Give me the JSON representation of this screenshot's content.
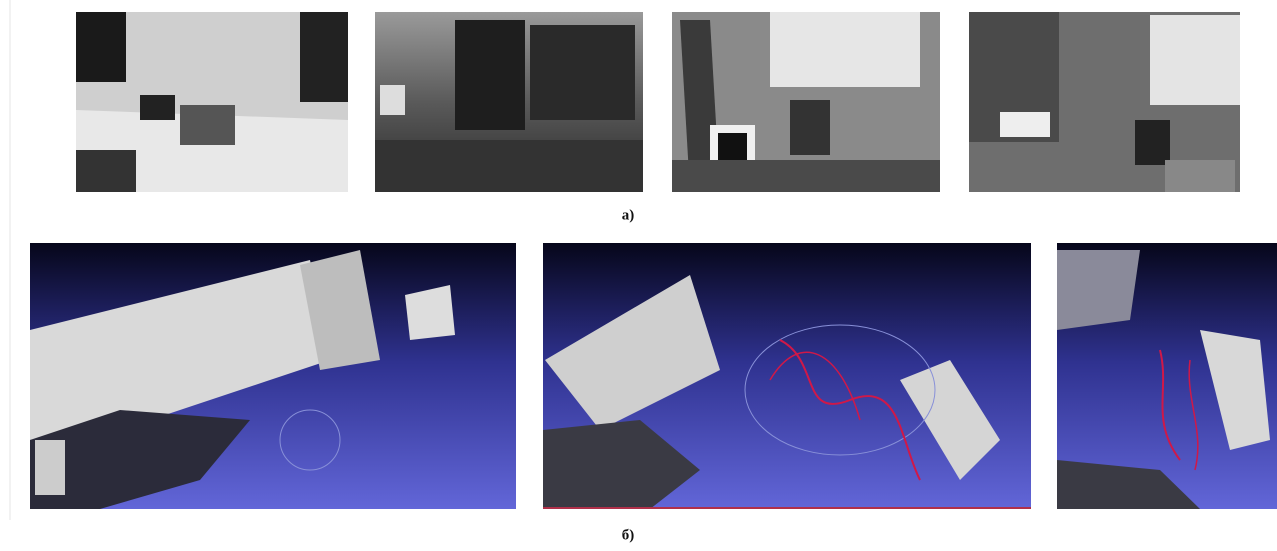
{
  "figure": {
    "panel_labels": [
      "а)",
      "б)"
    ]
  }
}
